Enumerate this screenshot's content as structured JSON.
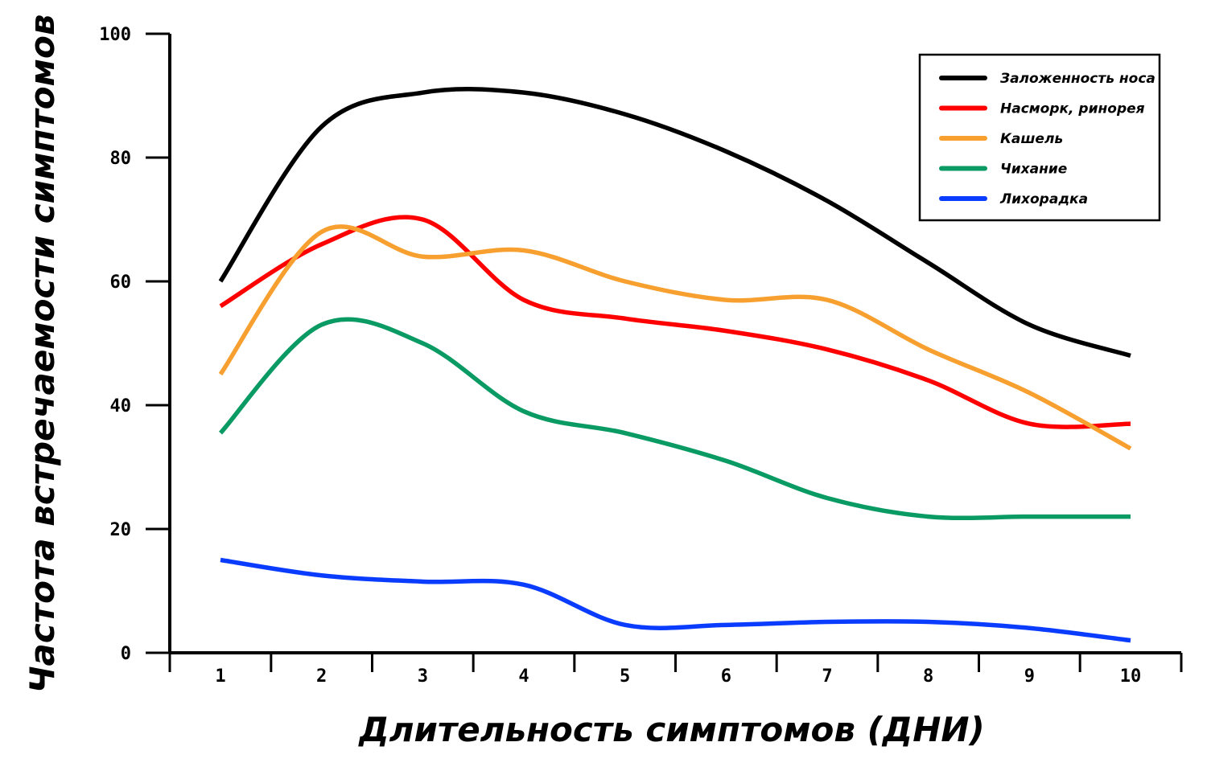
{
  "chart_data": {
    "type": "line",
    "xlabel": "Длительность симптомов (ДНИ)",
    "ylabel": "Частота встречаемости симптомов",
    "x": [
      1,
      2,
      3,
      4,
      5,
      6,
      7,
      8,
      9,
      10
    ],
    "x_tick_labels": [
      "1",
      "2",
      "3",
      "4",
      "5",
      "6",
      "7",
      "8",
      "9",
      "10"
    ],
    "y_ticks": [
      0,
      20,
      40,
      60,
      80,
      100
    ],
    "y_tick_labels": [
      "0",
      "20",
      "40",
      "60",
      "80",
      "100"
    ],
    "ylim": [
      0,
      100
    ],
    "grid": false,
    "legend_position": "top-right",
    "series": [
      {
        "name": "Заложенность носа",
        "color": "#000000",
        "values": [
          60,
          85,
          90.5,
          90.5,
          87,
          81,
          73,
          63,
          53,
          48
        ]
      },
      {
        "name": "Насморк, ринорея",
        "color": "#ff0000",
        "values": [
          56,
          66,
          70,
          57,
          54,
          52,
          49,
          44,
          37,
          37
        ]
      },
      {
        "name": "Кашель",
        "color": "#f7a030",
        "values": [
          45,
          68,
          64,
          65,
          60,
          57,
          57,
          49,
          42,
          33
        ]
      },
      {
        "name": "Чихание",
        "color": "#0a9a64",
        "values": [
          35.5,
          53,
          50,
          39,
          35.5,
          31,
          25,
          22,
          22,
          22
        ]
      },
      {
        "name": "Лихорадка",
        "color": "#0a3cff",
        "values": [
          15,
          12.5,
          11.5,
          11,
          4.5,
          4.5,
          5,
          5,
          4,
          2
        ]
      }
    ]
  }
}
